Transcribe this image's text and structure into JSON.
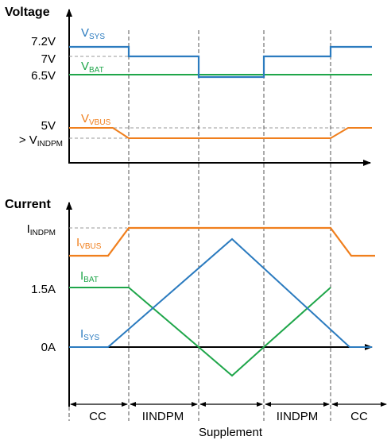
{
  "voltage_panel": {
    "title": "Voltage",
    "y_labels": {
      "v72": "7.2V",
      "v7": "7V",
      "v65": "6.5V",
      "v5": "5V",
      "vindpm_prefix": "> V",
      "vindpm_sub": "INDPM"
    },
    "signals": {
      "vsys": {
        "main": "V",
        "sub": "SYS",
        "color": "#2b7bbf"
      },
      "vbat": {
        "main": "V",
        "sub": "BAT",
        "color": "#1fa64a"
      },
      "vbus": {
        "main": "V",
        "sub": "VBUS",
        "color": "#f07f1d"
      }
    }
  },
  "current_panel": {
    "title": "Current",
    "y_labels": {
      "iindpm_main": "I",
      "iindpm_sub": "INDPM",
      "i15": "1.5A",
      "i0": "0A"
    },
    "signals": {
      "ivbus": {
        "main": "I",
        "sub": "VBUS",
        "color": "#f07f1d"
      },
      "ibat": {
        "main": "I",
        "sub": "BAT",
        "color": "#1fa64a"
      },
      "isys": {
        "main": "I",
        "sub": "SYS",
        "color": "#2b7bbf"
      }
    }
  },
  "phases": {
    "labels": [
      "CC",
      "IINDPM",
      "",
      "IINDPM",
      "CC"
    ],
    "bottom_label": "Supplement"
  }
}
